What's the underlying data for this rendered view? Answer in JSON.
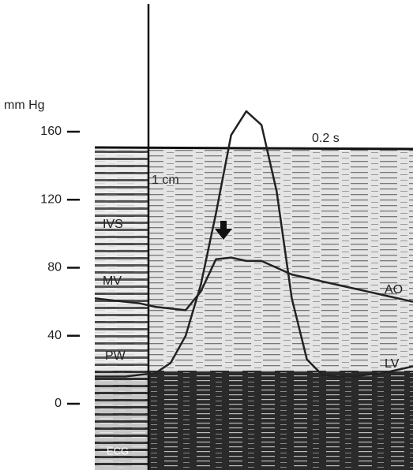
{
  "chart_data": {
    "type": "line",
    "y_label": "mm Hg",
    "categories": [
      null,
      null,
      null,
      null,
      null,
      null,
      null,
      null,
      null,
      null,
      null,
      null,
      null,
      null,
      null,
      null,
      null,
      null,
      null,
      null,
      null,
      null
    ],
    "series": [
      {
        "name": "LV",
        "color": "#222222",
        "values": [
          16,
          16,
          16,
          17,
          18,
          24,
          40,
          70,
          112,
          158,
          172,
          164,
          125,
          62,
          26,
          17,
          16,
          16,
          17,
          18,
          20,
          22
        ]
      },
      {
        "name": "AO",
        "color": "#222222",
        "values": [
          62,
          61,
          60,
          59,
          57,
          56,
          55,
          66,
          85,
          86,
          84,
          84,
          80,
          76,
          74,
          72,
          70,
          68,
          66,
          64,
          62,
          60
        ]
      }
    ],
    "ylim": [
      0,
      160
    ],
    "yticks": [
      0,
      40,
      80,
      120,
      160
    ],
    "annotations": [
      "0.2 s",
      "1 cm",
      "IVS",
      "MV",
      "PW",
      "ECG"
    ]
  }
}
